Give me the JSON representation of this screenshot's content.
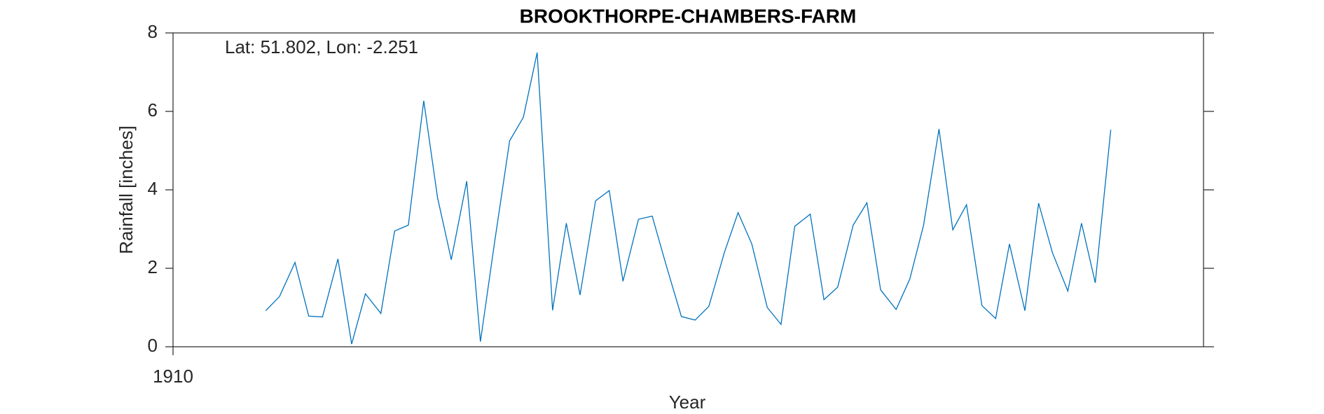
{
  "chart_data": {
    "type": "line",
    "title": "BROOKTHORPE-CHAMBERS-FARM",
    "annotation": "Lat: 51.802, Lon: -2.251",
    "xlabel": "Year",
    "ylabel": "Rainfall [inches]",
    "xlim": [
      1910,
      1916
    ],
    "xticks": [
      1910
    ],
    "ylim": [
      0,
      8
    ],
    "yticks": [
      0,
      2,
      4,
      6,
      8
    ],
    "grid": false,
    "x": [
      1910.54,
      1910.62,
      1910.71,
      1910.79,
      1910.87,
      1910.96,
      1911.04,
      1911.12,
      1911.21,
      1911.29,
      1911.37,
      1911.46,
      1911.54,
      1911.62,
      1911.71,
      1911.79,
      1911.87,
      1911.96,
      1912.04,
      1912.12,
      1912.21,
      1912.29,
      1912.37,
      1912.46,
      1912.54,
      1912.62,
      1912.71,
      1912.79,
      1912.87,
      1912.96,
      1913.04,
      1913.12,
      1913.21,
      1913.29,
      1913.37,
      1913.46,
      1913.54,
      1913.62,
      1913.71,
      1913.79,
      1913.87,
      1913.96,
      1914.04,
      1914.12,
      1914.21,
      1914.29,
      1914.37,
      1914.46,
      1914.54,
      1914.62,
      1914.71,
      1914.79,
      1914.87,
      1914.96,
      1915.04,
      1915.12,
      1915.21,
      1915.29,
      1915.37,
      1915.46
    ],
    "series": [
      {
        "color": "#0072bd",
        "values": [
          0.92,
          1.28,
          2.15,
          0.78,
          0.76,
          2.24,
          0.07,
          1.35,
          0.85,
          2.95,
          3.1,
          6.27,
          3.8,
          2.22,
          4.22,
          0.13,
          2.6,
          5.25,
          5.85,
          7.5,
          0.93,
          3.15,
          1.32,
          3.72,
          3.98,
          1.67,
          3.25,
          3.33,
          2.1,
          0.77,
          0.68,
          1.03,
          2.4,
          3.42,
          2.62,
          1.0,
          0.57,
          3.07,
          3.38,
          1.2,
          1.52,
          3.1,
          3.67,
          1.45,
          0.95,
          1.73,
          3.1,
          5.55,
          2.98,
          3.62,
          1.05,
          0.72,
          2.62,
          0.92,
          3.66,
          2.4,
          1.42,
          3.15,
          1.63,
          5.53
        ]
      }
    ]
  }
}
